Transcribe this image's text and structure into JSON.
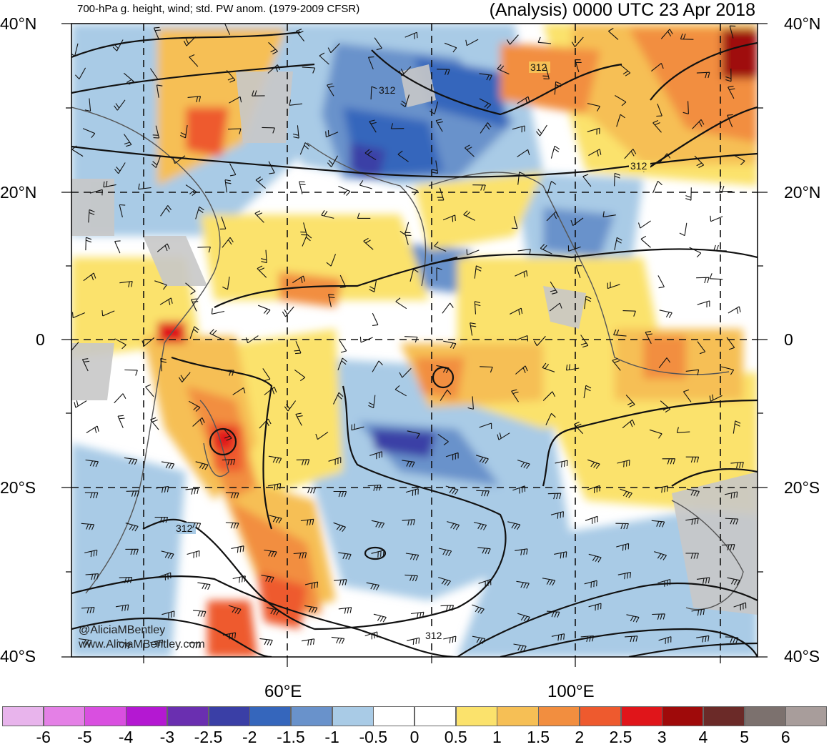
{
  "header": {
    "left": "700-hPa g. height, wind; std. PW anom. (1979-2009 CFSR)",
    "right": "(Analysis) 0000 UTC 23 Apr 2018"
  },
  "map": {
    "lat_labels": [
      "40°N",
      "20°N",
      "0",
      "20°S",
      "40°S"
    ],
    "lon_labels": [
      "60°E",
      "100°E"
    ],
    "contour_label": "312",
    "credit": [
      "@AliciaMBentley",
      "www.AliciaMBentley.com"
    ]
  },
  "colorbar": {
    "colors": [
      "#e8b4ec",
      "#e480e6",
      "#d94fe0",
      "#b418d2",
      "#6a2fb0",
      "#3a3fa6",
      "#3566bc",
      "#6992cb",
      "#a9cbe6",
      "#ffffff",
      "#ffffff",
      "#fbe26c",
      "#f6bf55",
      "#f28e3f",
      "#ee5a2e",
      "#e0151a",
      "#9f0a0a",
      "#6b2a28",
      "#7c716e",
      "#a89d9b"
    ],
    "labels": [
      "-6",
      "-5",
      "-4",
      "-3",
      "-2.5",
      "-2",
      "-1.5",
      "-1",
      "-0.5",
      "0",
      "0.5",
      "1",
      "1.5",
      "2",
      "2.5",
      "3",
      "4",
      "5",
      "6"
    ]
  }
}
